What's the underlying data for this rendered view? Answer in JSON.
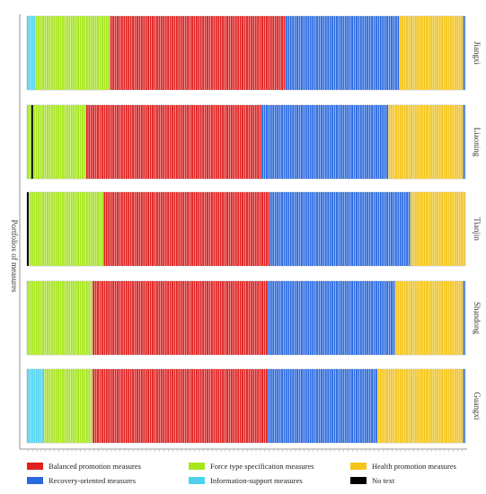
{
  "chart_data": {
    "type": "bar",
    "stacked_percent": true,
    "ylabel": "Portfolios of measures",
    "grid": false,
    "legend_position": "bottom",
    "categories_per_panel": 200,
    "panels": [
      {
        "name": "Jiangxi",
        "segments": [
          {
            "category": "Information-support measures",
            "count": 4
          },
          {
            "category": "Force type specification measures",
            "count": 34
          },
          {
            "category": "Balanced promotion measures",
            "count": 80
          },
          {
            "category": "Recovery-oriented measures",
            "count": 52
          },
          {
            "category": "Health promotion measures",
            "count": 29
          },
          {
            "category": "Recovery-oriented measures",
            "count": 1
          }
        ]
      },
      {
        "name": "Liaoning",
        "segments": [
          {
            "category": "Force type specification measures",
            "count": 2
          },
          {
            "category": "No text",
            "count": 1
          },
          {
            "category": "Force type specification measures",
            "count": 24
          },
          {
            "category": "Balanced promotion measures",
            "count": 80
          },
          {
            "category": "Recovery-oriented measures",
            "count": 58
          },
          {
            "category": "Health promotion measures",
            "count": 34
          },
          {
            "category": "Recovery-oriented measures",
            "count": 1
          }
        ]
      },
      {
        "name": "Tianjin",
        "segments": [
          {
            "category": "No text",
            "count": 1
          },
          {
            "category": "Force type specification measures",
            "count": 34
          },
          {
            "category": "Balanced promotion measures",
            "count": 76
          },
          {
            "category": "Recovery-oriented measures",
            "count": 64
          },
          {
            "category": "Health promotion measures",
            "count": 25
          }
        ]
      },
      {
        "name": "Shandong",
        "segments": [
          {
            "category": "Force type specification measures",
            "count": 30
          },
          {
            "category": "Balanced promotion measures",
            "count": 80
          },
          {
            "category": "Recovery-oriented measures",
            "count": 58
          },
          {
            "category": "Health promotion measures",
            "count": 31
          },
          {
            "category": "Recovery-oriented measures",
            "count": 1
          }
        ]
      },
      {
        "name": "Guangxi",
        "segments": [
          {
            "category": "Information-support measures",
            "count": 8
          },
          {
            "category": "Force type specification measures",
            "count": 22
          },
          {
            "category": "Balanced promotion measures",
            "count": 80
          },
          {
            "category": "Recovery-oriented measures",
            "count": 50
          },
          {
            "category": "Health promotion measures",
            "count": 39
          },
          {
            "category": "Recovery-oriented measures",
            "count": 1
          }
        ]
      }
    ],
    "legend": [
      {
        "label": "Balanced promotion measures",
        "color": "#e02020"
      },
      {
        "label": "Force type specification measures",
        "color": "#a6e61a"
      },
      {
        "label": "Health promotion measures",
        "color": "#f5c518"
      },
      {
        "label": "Recovery-oriented measures",
        "color": "#2a6ae0"
      },
      {
        "label": "Information-support measures",
        "color": "#4ed2f0"
      },
      {
        "label": "No text",
        "color": "#000000"
      }
    ]
  }
}
